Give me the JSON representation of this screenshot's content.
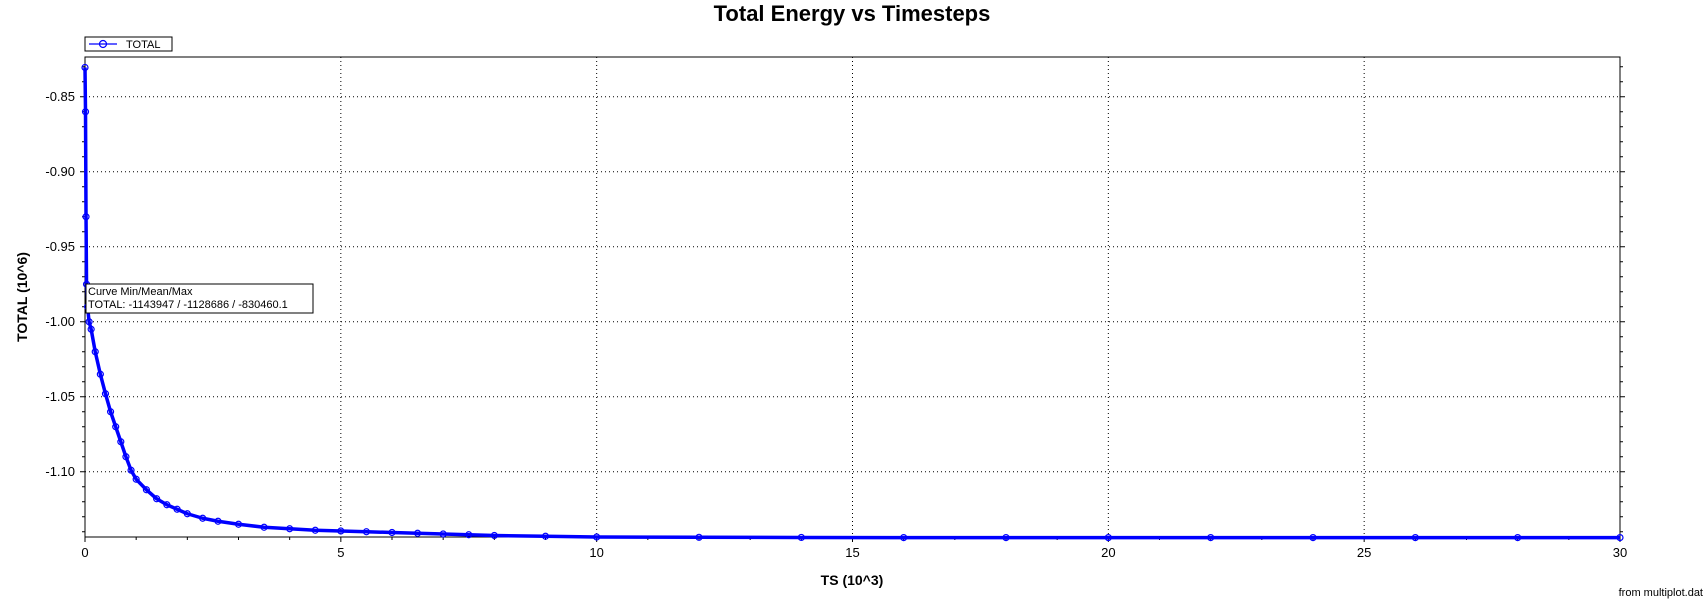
{
  "chart_data": {
    "type": "line",
    "title": "Total Energy vs Timesteps",
    "xlabel": "TS (10^3)",
    "ylabel": "TOTAL (10^6)",
    "xlim": [
      0,
      30
    ],
    "ylim": [
      -1.1435,
      -0.8235
    ],
    "xticks": [
      0,
      5,
      10,
      15,
      20,
      25,
      30
    ],
    "yticks": [
      -0.85,
      -0.9,
      -0.95,
      -1.0,
      -1.05,
      -1.1
    ],
    "ytick_labels": [
      "-0.85",
      "-0.90",
      "-0.95",
      "-1.00",
      "-1.05",
      "-1.10"
    ],
    "grid": true,
    "legend_position": "top-left",
    "series": [
      {
        "name": "TOTAL",
        "color": "#0000ff",
        "marker": "circle",
        "x": [
          0,
          0.01,
          0.02,
          0.03,
          0.05,
          0.08,
          0.12,
          0.2,
          0.3,
          0.4,
          0.5,
          0.6,
          0.7,
          0.8,
          0.9,
          1.0,
          1.2,
          1.4,
          1.6,
          1.8,
          2.0,
          2.3,
          2.6,
          3.0,
          3.5,
          4.0,
          4.5,
          5.0,
          5.5,
          6.0,
          6.5,
          7.0,
          7.5,
          8.0,
          9.0,
          10.0,
          12.0,
          14.0,
          16.0,
          18.0,
          20.0,
          22.0,
          24.0,
          26.0,
          28.0,
          30.0
        ],
        "y": [
          -0.8305,
          -0.86,
          -0.93,
          -0.975,
          -0.99,
          -1.0,
          -1.005,
          -1.02,
          -1.035,
          -1.048,
          -1.06,
          -1.07,
          -1.08,
          -1.09,
          -1.099,
          -1.105,
          -1.112,
          -1.118,
          -1.122,
          -1.125,
          -1.128,
          -1.131,
          -1.133,
          -1.135,
          -1.137,
          -1.138,
          -1.139,
          -1.1395,
          -1.14,
          -1.1405,
          -1.141,
          -1.1415,
          -1.142,
          -1.1425,
          -1.143,
          -1.1435,
          -1.1437,
          -1.1438,
          -1.1439,
          -1.1439,
          -1.1439,
          -1.1439,
          -1.1439,
          -1.1439,
          -1.1439,
          -1.1439
        ]
      }
    ],
    "info_box": {
      "header": "Curve Min/Mean/Max",
      "line": "TOTAL: -1143947 / -1128686 / -830460.1"
    },
    "source_note": "from multiplot.dat"
  }
}
